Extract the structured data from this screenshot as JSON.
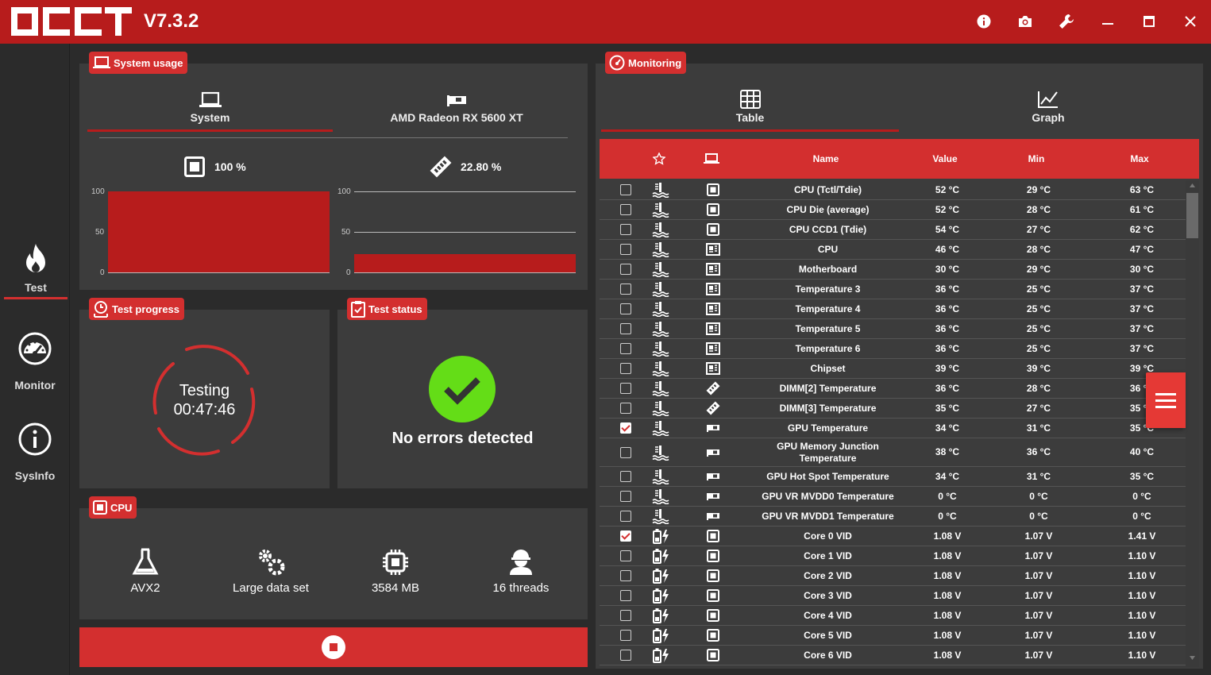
{
  "app": {
    "version": "V7.3.2",
    "brand_color": "#b71c1c",
    "accent_color": "#d32f2f"
  },
  "titlebar": {
    "icons": [
      "info-icon",
      "camera-icon",
      "wrench-icon",
      "minimize-icon",
      "maximize-icon",
      "close-icon"
    ]
  },
  "sidebar": {
    "items": [
      {
        "label": "Test",
        "icon": "flame-icon",
        "active": true
      },
      {
        "label": "Monitor",
        "icon": "gauge-icon",
        "active": false
      },
      {
        "label": "SysInfo",
        "icon": "info-icon",
        "active": false
      }
    ]
  },
  "system_usage": {
    "title": "System usage",
    "tabs": [
      {
        "label": "System",
        "active": true
      },
      {
        "label": "AMD Radeon RX 5600 XT",
        "active": false
      }
    ],
    "cpu_usage": "100 %",
    "mem_usage": "22.80 %",
    "cpu_level": 1.0,
    "mem_level": 0.228,
    "axis_ticks": [
      "100",
      "50",
      "0"
    ]
  },
  "test_progress": {
    "title": "Test progress",
    "status": "Testing",
    "elapsed": "00:47:46"
  },
  "test_status": {
    "title": "Test status",
    "message": "No errors detected",
    "ok_color": "#64dd17"
  },
  "cpu": {
    "title": "CPU",
    "items": [
      {
        "label": "AVX2",
        "icon": "flask-icon"
      },
      {
        "label": "Large data set",
        "icon": "gears-icon"
      },
      {
        "label": "3584 MB",
        "icon": "chip-icon"
      },
      {
        "label": "16 threads",
        "icon": "worker-icon"
      }
    ]
  },
  "monitoring": {
    "title": "Monitoring",
    "tabs": [
      {
        "label": "Table",
        "active": true
      },
      {
        "label": "Graph",
        "active": false
      }
    ],
    "columns": {
      "name": "Name",
      "value": "Value",
      "min": "Min",
      "max": "Max"
    },
    "rows": [
      {
        "checked": false,
        "type": "temp",
        "src": "cpu",
        "name": "CPU (Tctl/Tdie)",
        "value": "52 °C",
        "min": "29 °C",
        "max": "63 °C"
      },
      {
        "checked": false,
        "type": "temp",
        "src": "cpu",
        "name": "CPU Die (average)",
        "value": "52 °C",
        "min": "28 °C",
        "max": "61 °C"
      },
      {
        "checked": false,
        "type": "temp",
        "src": "cpu",
        "name": "CPU CCD1 (Tdie)",
        "value": "54 °C",
        "min": "27 °C",
        "max": "62 °C"
      },
      {
        "checked": false,
        "type": "temp",
        "src": "board",
        "name": "CPU",
        "value": "46 °C",
        "min": "28 °C",
        "max": "47 °C"
      },
      {
        "checked": false,
        "type": "temp",
        "src": "board",
        "name": "Motherboard",
        "value": "30 °C",
        "min": "29 °C",
        "max": "30 °C"
      },
      {
        "checked": false,
        "type": "temp",
        "src": "board",
        "name": "Temperature 3",
        "value": "36 °C",
        "min": "25 °C",
        "max": "37 °C"
      },
      {
        "checked": false,
        "type": "temp",
        "src": "board",
        "name": "Temperature 4",
        "value": "36 °C",
        "min": "25 °C",
        "max": "37 °C"
      },
      {
        "checked": false,
        "type": "temp",
        "src": "board",
        "name": "Temperature 5",
        "value": "36 °C",
        "min": "25 °C",
        "max": "37 °C"
      },
      {
        "checked": false,
        "type": "temp",
        "src": "board",
        "name": "Temperature 6",
        "value": "36 °C",
        "min": "25 °C",
        "max": "37 °C"
      },
      {
        "checked": false,
        "type": "temp",
        "src": "board",
        "name": "Chipset",
        "value": "39 °C",
        "min": "39 °C",
        "max": "39 °C"
      },
      {
        "checked": false,
        "type": "temp",
        "src": "ram",
        "name": "DIMM[2] Temperature",
        "value": "36 °C",
        "min": "28 °C",
        "max": "36 °C"
      },
      {
        "checked": false,
        "type": "temp",
        "src": "ram",
        "name": "DIMM[3] Temperature",
        "value": "35 °C",
        "min": "27 °C",
        "max": "35 °C"
      },
      {
        "checked": true,
        "type": "temp",
        "src": "gpu",
        "name": "GPU Temperature",
        "value": "34 °C",
        "min": "31 °C",
        "max": "35 °C"
      },
      {
        "checked": false,
        "type": "temp",
        "src": "gpu",
        "name": "GPU Memory Junction Temperature",
        "value": "38 °C",
        "min": "36 °C",
        "max": "40 °C",
        "tall": true
      },
      {
        "checked": false,
        "type": "temp",
        "src": "gpu",
        "name": "GPU Hot Spot Temperature",
        "value": "34 °C",
        "min": "31 °C",
        "max": "35 °C"
      },
      {
        "checked": false,
        "type": "temp",
        "src": "gpu",
        "name": "GPU VR MVDD0 Temperature",
        "value": "0 °C",
        "min": "0 °C",
        "max": "0 °C"
      },
      {
        "checked": false,
        "type": "temp",
        "src": "gpu",
        "name": "GPU VR MVDD1 Temperature",
        "value": "0 °C",
        "min": "0 °C",
        "max": "0 °C"
      },
      {
        "checked": true,
        "type": "volt",
        "src": "cpu",
        "name": "Core 0 VID",
        "value": "1.08 V",
        "min": "1.07 V",
        "max": "1.41 V"
      },
      {
        "checked": false,
        "type": "volt",
        "src": "cpu",
        "name": "Core 1 VID",
        "value": "1.08 V",
        "min": "1.07 V",
        "max": "1.10 V"
      },
      {
        "checked": false,
        "type": "volt",
        "src": "cpu",
        "name": "Core 2 VID",
        "value": "1.08 V",
        "min": "1.07 V",
        "max": "1.10 V"
      },
      {
        "checked": false,
        "type": "volt",
        "src": "cpu",
        "name": "Core 3 VID",
        "value": "1.08 V",
        "min": "1.07 V",
        "max": "1.10 V"
      },
      {
        "checked": false,
        "type": "volt",
        "src": "cpu",
        "name": "Core 4 VID",
        "value": "1.08 V",
        "min": "1.07 V",
        "max": "1.10 V"
      },
      {
        "checked": false,
        "type": "volt",
        "src": "cpu",
        "name": "Core 5 VID",
        "value": "1.08 V",
        "min": "1.07 V",
        "max": "1.10 V"
      },
      {
        "checked": false,
        "type": "volt",
        "src": "cpu",
        "name": "Core 6 VID",
        "value": "1.08 V",
        "min": "1.07 V",
        "max": "1.10 V"
      }
    ]
  }
}
